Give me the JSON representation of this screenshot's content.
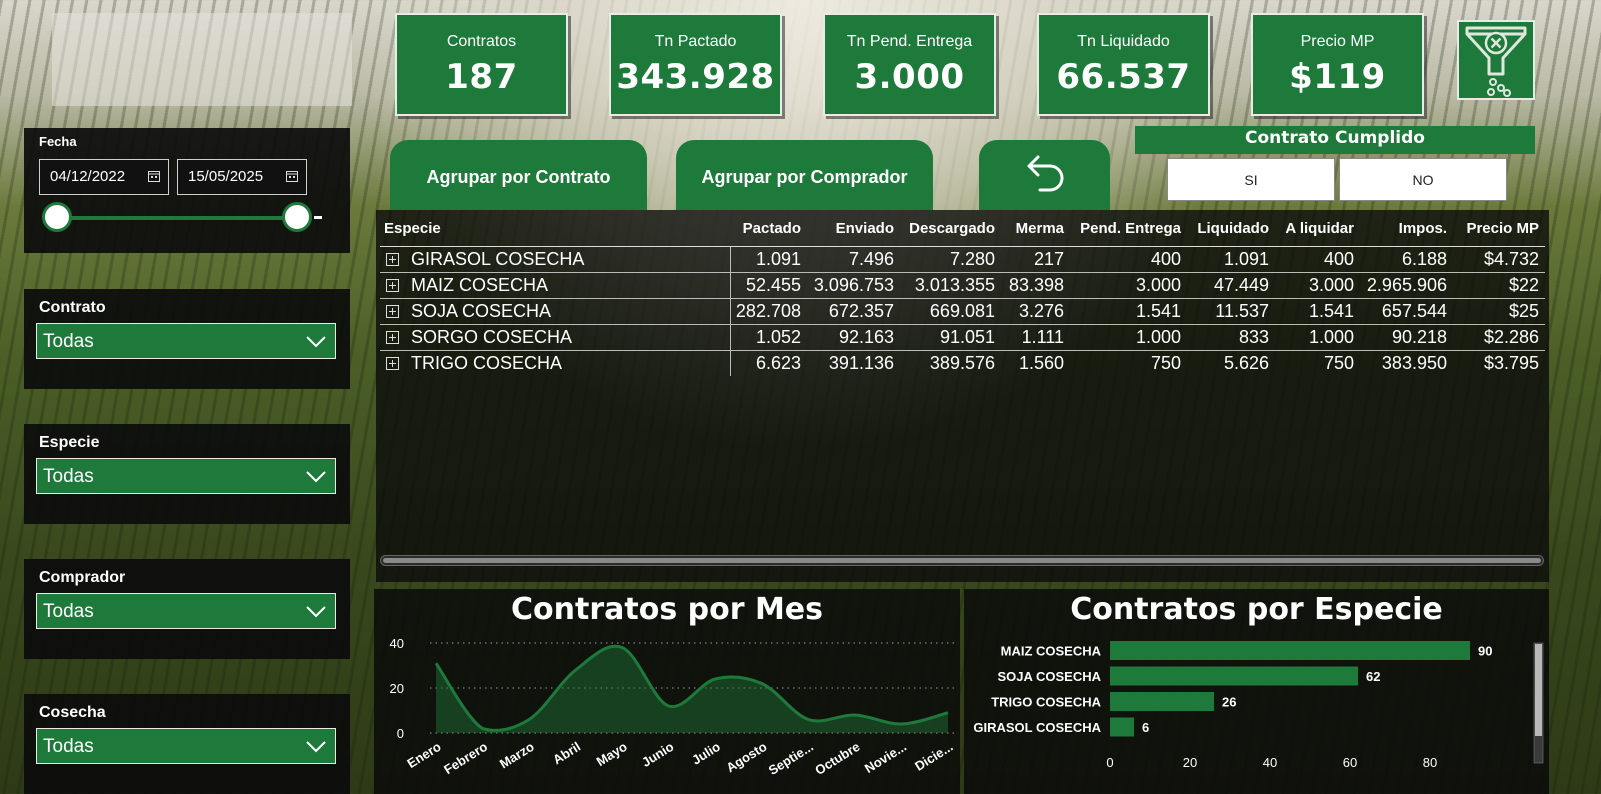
{
  "kpis": [
    {
      "label": "Contratos",
      "value": "187"
    },
    {
      "label": "Tn Pactado",
      "value": "343.928"
    },
    {
      "label": "Tn Pend. Entrega",
      "value": "3.000"
    },
    {
      "label": "Tn Liquidado",
      "value": "66.537"
    },
    {
      "label": "Precio MP",
      "value": "$119"
    }
  ],
  "clear_filters_icon": "funnel-clear-icon",
  "fecha": {
    "title": "Fecha",
    "from": "04/12/2022",
    "to": "15/05/2025"
  },
  "slicers": [
    {
      "title": "Contrato",
      "value": "Todas"
    },
    {
      "title": "Especie",
      "value": "Todas"
    },
    {
      "title": "Comprador",
      "value": "Todas"
    },
    {
      "title": "Cosecha",
      "value": "Todas"
    }
  ],
  "buttons": {
    "by_contract": "Agrupar por Contrato",
    "by_buyer": "Agrupar por Comprador",
    "back_icon": "undo-arrow-icon"
  },
  "contrato_cumplido": {
    "title": "Contrato Cumplido",
    "si": "SI",
    "no": "NO"
  },
  "table": {
    "headers": [
      "Especie",
      "Pactado",
      "Enviado",
      "Descargado",
      "Merma",
      "Pend. Entrega",
      "Liquidado",
      "A liquidar",
      "Impos.",
      "Precio MP"
    ],
    "rows": [
      [
        "GIRASOL COSECHA",
        "1.091",
        "7.496",
        "7.280",
        "217",
        "400",
        "1.091",
        "400",
        "6.188",
        "$4.732"
      ],
      [
        "MAIZ COSECHA",
        "52.455",
        "3.096.753",
        "3.013.355",
        "83.398",
        "3.000",
        "47.449",
        "3.000",
        "2.965.906",
        "$22"
      ],
      [
        "SOJA COSECHA",
        "282.708",
        "672.357",
        "669.081",
        "3.276",
        "1.541",
        "11.537",
        "1.541",
        "657.544",
        "$25"
      ],
      [
        "SORGO COSECHA",
        "1.052",
        "92.163",
        "91.051",
        "1.111",
        "1.000",
        "833",
        "1.000",
        "90.218",
        "$2.286"
      ],
      [
        "TRIGO COSECHA",
        "6.623",
        "391.136",
        "389.576",
        "1.560",
        "750",
        "5.626",
        "750",
        "383.950",
        "$3.795"
      ]
    ]
  },
  "chart_data": [
    {
      "type": "area",
      "title": "Contratos por Mes",
      "categories": [
        "Enero",
        "Febrero",
        "Marzo",
        "Abril",
        "Mayo",
        "Junio",
        "Julio",
        "Agosto",
        "Septie...",
        "Octubre",
        "Novie...",
        "Dicie..."
      ],
      "values": [
        31,
        2,
        6,
        28,
        38,
        12,
        24,
        22,
        6,
        8,
        4,
        9
      ],
      "ylim": [
        0,
        40
      ],
      "yticks": [
        0,
        20,
        40
      ],
      "color": "#1e7a3a"
    },
    {
      "type": "bar",
      "orientation": "horizontal",
      "title": "Contratos por Especie",
      "categories": [
        "MAIZ COSECHA",
        "SOJA COSECHA",
        "TRIGO COSECHA",
        "GIRASOL COSECHA"
      ],
      "values": [
        90,
        62,
        26,
        6
      ],
      "xlim": [
        0,
        100
      ],
      "xticks": [
        0,
        20,
        40,
        60,
        80
      ],
      "color": "#1e7a3a"
    }
  ]
}
